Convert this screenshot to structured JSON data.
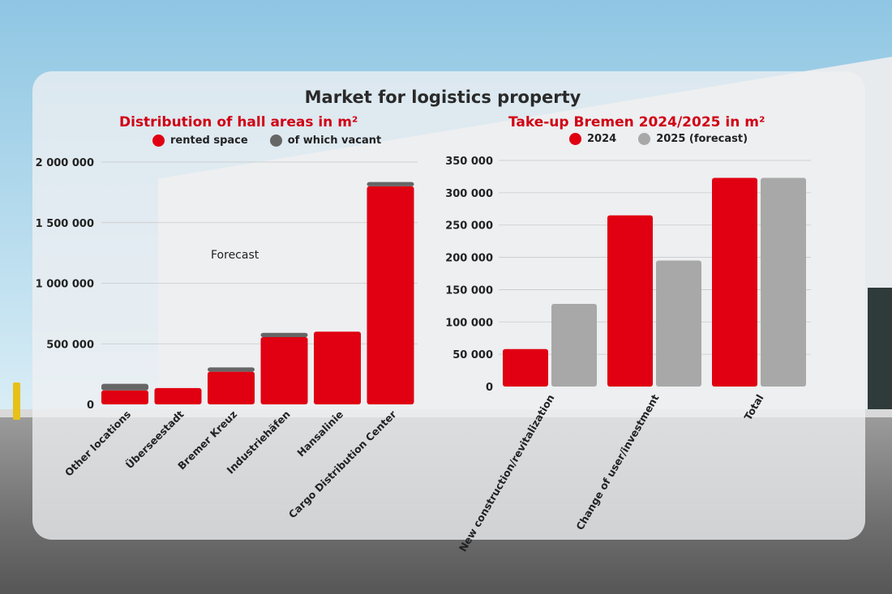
{
  "title": "Market for logistics property",
  "colors": {
    "red": "#e00012",
    "vacant": "#666666",
    "grey": "#a8a8a8",
    "title_red": "#d10014"
  },
  "chart_data": [
    {
      "type": "bar",
      "stacked": true,
      "title": "Distribution of hall areas in m²",
      "legend": [
        "rented space",
        "of which vacant"
      ],
      "legend_position": "top",
      "categories": [
        "Other locations",
        "Überseestadt",
        "Bremer Kreuz",
        "Industriehäfen",
        "Hansalinie",
        "Cargo Distribution Center"
      ],
      "series": [
        {
          "name": "rented space",
          "color": "#e00012",
          "values": [
            115000,
            135000,
            270000,
            555000,
            600000,
            1800000
          ]
        },
        {
          "name": "of which vacant",
          "color": "#666666",
          "values": [
            55000,
            0,
            35000,
            35000,
            0,
            35000
          ]
        }
      ],
      "ylim": [
        0,
        2000000
      ],
      "yticks": [
        "0",
        "500 000",
        "1 000 000",
        "1 500 000",
        "2 000 000"
      ],
      "ytick_values": [
        0,
        500000,
        1000000,
        1500000,
        2000000
      ],
      "grid": true,
      "annotation": "Forecast"
    },
    {
      "type": "bar",
      "title": "Take-up Bremen 2024/2025 in m²",
      "legend": [
        "2024",
        "2025 (forecast)"
      ],
      "legend_position": "top",
      "categories": [
        "New construction/revitalization",
        "Change of user/investment",
        "Total"
      ],
      "series": [
        {
          "name": "2024",
          "color": "#e00012",
          "values": [
            58000,
            265000,
            323000
          ]
        },
        {
          "name": "2025 (forecast)",
          "color": "#a8a8a8",
          "values": [
            128000,
            195000,
            323000
          ]
        }
      ],
      "ylim": [
        0,
        350000
      ],
      "yticks": [
        "0",
        "50 000",
        "100 000",
        "150 000",
        "200 000",
        "250 000",
        "300 000",
        "350 000"
      ],
      "ytick_values": [
        0,
        50000,
        100000,
        150000,
        200000,
        250000,
        300000,
        350000
      ],
      "grid": true
    }
  ]
}
